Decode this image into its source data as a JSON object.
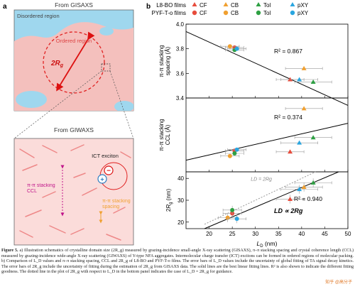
{
  "panel_a": {
    "label": "a",
    "top_title": "From GISAXS",
    "disordered": "Disordered region",
    "ordered": "Ordered region",
    "rg": "2R",
    "rg_sub": "g",
    "bottom_title": "From GIWAXS",
    "ict": "ICT exciton",
    "ccl": "π-π stacking CCL",
    "spacing": "π-π stacking spacing"
  },
  "panel_b": {
    "label": "b",
    "legend": {
      "row1_label": "L8-BO films",
      "row2_label": "PYF-T-o films",
      "items": [
        {
          "name": "CF",
          "color": "#e74c3c"
        },
        {
          "name": "CB",
          "color": "#f0a030"
        },
        {
          "name": "Tol",
          "color": "#2ea043"
        },
        {
          "name": "pXY",
          "color": "#2aa6e0"
        }
      ]
    },
    "colors": {
      "CF": "#e74c3c",
      "CB": "#f0a030",
      "Tol": "#2ea043",
      "pXY": "#2aa6e0"
    }
  },
  "chart_data": [
    {
      "type": "scatter",
      "ylabel": "π-π stacking spacing (Å)",
      "ylim": [
        3.4,
        4.0
      ],
      "yticks": [
        3.4,
        3.6,
        3.8,
        4.0
      ],
      "xlim": [
        15,
        50
      ],
      "annotation": "R² = 0.867",
      "fit": [
        [
          15,
          3.94
        ],
        [
          50,
          3.34
        ]
      ],
      "points": [
        {
          "series": "L8-BO",
          "solvent": "CF",
          "x": 37.5,
          "y": 3.55,
          "xerr": 3
        },
        {
          "series": "L8-BO",
          "solvent": "CB",
          "x": 40.5,
          "y": 3.64,
          "xerr": 4
        },
        {
          "series": "L8-BO",
          "solvent": "Tol",
          "x": 42.5,
          "y": 3.53,
          "xerr": 4
        },
        {
          "series": "L8-BO",
          "solvent": "pXY",
          "x": 39.5,
          "y": 3.55,
          "xerr": 4
        },
        {
          "series": "PYF-T-o",
          "solvent": "CF",
          "x": 25.5,
          "y": 3.81,
          "xerr": 2
        },
        {
          "series": "PYF-T-o",
          "solvent": "CB",
          "x": 24.5,
          "y": 3.82,
          "xerr": 2
        },
        {
          "series": "PYF-T-o",
          "solvent": "Tol",
          "x": 25.5,
          "y": 3.79,
          "xerr": 2
        },
        {
          "series": "PYF-T-o",
          "solvent": "pXY",
          "x": 26.0,
          "y": 3.8,
          "xerr": 2
        }
      ]
    },
    {
      "type": "scatter",
      "ylabel": "π-π stacking CCL (Å)",
      "ylim": [
        10,
        24
      ],
      "yticks": [],
      "xlim": [
        15,
        50
      ],
      "annotation": "R² = 0.374",
      "fit": [
        [
          15,
          12.2
        ],
        [
          50,
          19.2
        ]
      ],
      "points": [
        {
          "series": "L8-BO",
          "solvent": "CF",
          "x": 37.5,
          "y": 13.8,
          "xerr": 3
        },
        {
          "series": "L8-BO",
          "solvent": "CB",
          "x": 40.5,
          "y": 22.0,
          "xerr": 4
        },
        {
          "series": "L8-BO",
          "solvent": "Tol",
          "x": 42.5,
          "y": 16.5,
          "xerr": 4
        },
        {
          "series": "L8-BO",
          "solvent": "pXY",
          "x": 39.5,
          "y": 15.5,
          "xerr": 4
        },
        {
          "series": "PYF-T-o",
          "solvent": "CF",
          "x": 25.5,
          "y": 14.0,
          "xerr": 2
        },
        {
          "series": "PYF-T-o",
          "solvent": "CB",
          "x": 24.5,
          "y": 13.0,
          "xerr": 2
        },
        {
          "series": "PYF-T-o",
          "solvent": "Tol",
          "x": 25.5,
          "y": 13.5,
          "xerr": 2
        },
        {
          "series": "PYF-T-o",
          "solvent": "pXY",
          "x": 26.0,
          "y": 14.2,
          "xerr": 2
        }
      ]
    },
    {
      "type": "scatter",
      "ylabel": "2R_g (nm)",
      "ylim": [
        17,
        43
      ],
      "yticks": [
        20,
        30,
        40
      ],
      "xlim": [
        15,
        50
      ],
      "xticks": [
        20,
        25,
        30,
        35,
        40,
        45,
        50
      ],
      "xlabel": "L_D (nm)",
      "annotation": "R² = 0.940",
      "annotation2": "L_D ∝ 2R_g",
      "dotted_label": "L_D = 2R_g",
      "fit": [
        [
          19,
          17
        ],
        [
          48,
          43
        ]
      ],
      "dotted": [
        [
          19,
          19
        ],
        [
          43,
          43
        ]
      ],
      "points": [
        {
          "series": "L8-BO",
          "solvent": "CF",
          "x": 37.5,
          "y": 30.5,
          "xerr": 3,
          "yerr": 2
        },
        {
          "series": "L8-BO",
          "solvent": "CB",
          "x": 40.5,
          "y": 36.0,
          "xerr": 4,
          "yerr": 2
        },
        {
          "series": "L8-BO",
          "solvent": "Tol",
          "x": 42.5,
          "y": 38.0,
          "xerr": 4,
          "yerr": 2
        },
        {
          "series": "L8-BO",
          "solvent": "pXY",
          "x": 39.5,
          "y": 35.0,
          "xerr": 4,
          "yerr": 2
        },
        {
          "series": "PYF-T-o",
          "solvent": "CF",
          "x": 25.0,
          "y": 24.0,
          "xerr": 2,
          "yerr": 2
        },
        {
          "series": "PYF-T-o",
          "solvent": "CB",
          "x": 24.0,
          "y": 22.0,
          "xerr": 2,
          "yerr": 2
        },
        {
          "series": "PYF-T-o",
          "solvent": "Tol",
          "x": 25.0,
          "y": 25.5,
          "xerr": 2,
          "yerr": 2
        },
        {
          "series": "PYF-T-o",
          "solvent": "pXY",
          "x": 26.0,
          "y": 21.5,
          "xerr": 2,
          "yerr": 2
        }
      ]
    }
  ],
  "caption": {
    "lead": "Figure 5.",
    "text": " a) Illustration schematics of crystalline domain size (2R_g) measured by grazing-incidence small-angle X-ray scattering (GISAXS), π–π stacking spacing and crystal coherence length (CCL) measured by grazing-incidence wide-angle X-ray scattering (GIWAXS) of Y-type NFA aggregates. Intermolecular charge transfer (ICT) excitons can be formed in ordered regions of molecular packing. b) Comparison of L_D values and π–π stacking spacing, CCL and 2R_g of L8-BO and PYF-T-o films. The error bars of L_D values include the uncertainty of global fitting of TA signal decay kinetics. The error bars of 2R_g include the uncertainty of fitting during the estimation of 2R_g from GISAXS data. The solid lines are the best linear fitting lines. R² is also shown to indicate the different fitting goodness. The dotted line in the plot of 2R_g with respect to L_D in the bottom panel indicates the case of L_D = 2R_g for guidance."
  },
  "watermark": "知乎 @高分子"
}
